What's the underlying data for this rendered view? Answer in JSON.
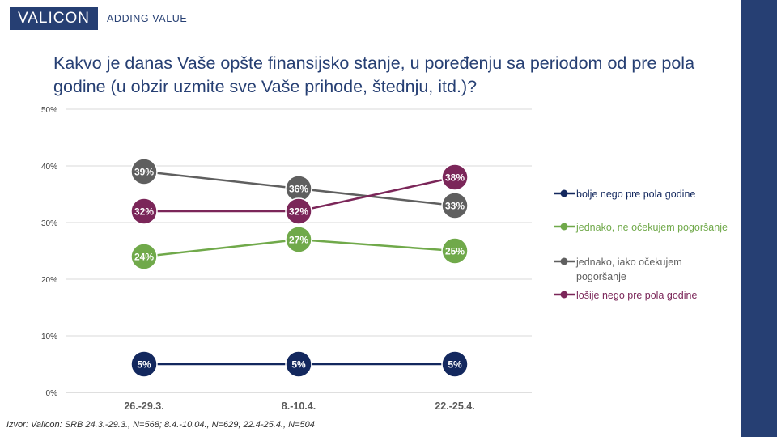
{
  "header": {
    "logo_text": "VALICON",
    "tagline": "ADDING VALUE"
  },
  "title": "Kakvo je danas Vaše opšte finansijsko stanje, u poređenju sa periodom od pre pola godine (u obzir uzmite sve Vaše prihode, štednju, itd.)?",
  "source": "Izvor: Valicon: SRB 24.3.-29.3., N=568; 8.4.-10.04., N=629; 22.4-25.4., N=504",
  "colors": {
    "accent": "#263f73"
  },
  "chart_data": {
    "type": "line",
    "categories": [
      "26.-29.3.",
      "8.-10.4.",
      "22.-25.4."
    ],
    "ylim": [
      0,
      50
    ],
    "yticks": [
      "0%",
      "10%",
      "20%",
      "30%",
      "40%",
      "50%"
    ],
    "grid": true,
    "legend": "right",
    "series": [
      {
        "name": "bolje nego pre pola godine",
        "color": "#13285e",
        "values": [
          5,
          5,
          5
        ],
        "labels": [
          "5%",
          "5%",
          "5%"
        ]
      },
      {
        "name": "jednako, ne očekujem pogoršanje",
        "color": "#70a94a",
        "values": [
          24,
          27,
          25
        ],
        "labels": [
          "24%",
          "27%",
          "25%"
        ]
      },
      {
        "name": "jednako, iako očekujem pogoršanje",
        "color": "#5f5f5f",
        "values": [
          39,
          36,
          33
        ],
        "labels": [
          "39%",
          "36%",
          "33%"
        ]
      },
      {
        "name": "lošije nego pre pola godine",
        "color": "#7b2659",
        "values": [
          32,
          32,
          38
        ],
        "labels": [
          "32%",
          "32%",
          "38%"
        ]
      }
    ]
  }
}
